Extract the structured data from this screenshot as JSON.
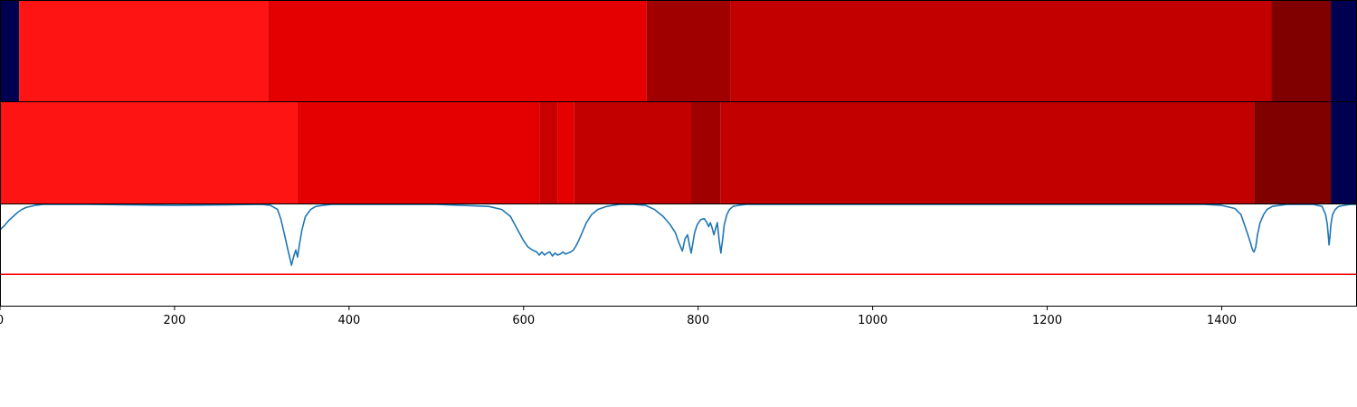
{
  "chart_data": [
    {
      "type": "heatmap",
      "segments": [
        {
          "start": 0,
          "end": 22,
          "color": "#000050"
        },
        {
          "start": 22,
          "end": 307,
          "color": "#ff1414"
        },
        {
          "start": 307,
          "end": 741,
          "color": "#e40000"
        },
        {
          "start": 741,
          "end": 837,
          "color": "#a10000"
        },
        {
          "start": 837,
          "end": 1457,
          "color": "#c20000"
        },
        {
          "start": 1457,
          "end": 1525,
          "color": "#800000"
        },
        {
          "start": 1525,
          "end": 1555,
          "color": "#000050"
        }
      ]
    },
    {
      "type": "heatmap",
      "segments": [
        {
          "start": 0,
          "end": 341,
          "color": "#ff1414"
        },
        {
          "start": 341,
          "end": 618,
          "color": "#e40000"
        },
        {
          "start": 618,
          "end": 639,
          "color": "#c80000"
        },
        {
          "start": 639,
          "end": 658,
          "color": "#e40000"
        },
        {
          "start": 658,
          "end": 792,
          "color": "#c20000"
        },
        {
          "start": 792,
          "end": 826,
          "color": "#a10000"
        },
        {
          "start": 826,
          "end": 1437,
          "color": "#c20000"
        },
        {
          "start": 1437,
          "end": 1525,
          "color": "#800000"
        },
        {
          "start": 1525,
          "end": 1555,
          "color": "#000050"
        }
      ]
    },
    {
      "type": "line",
      "xlim": [
        0,
        1555
      ],
      "ylim": [
        0,
        1
      ],
      "xticks": [
        "0",
        "200",
        "400",
        "600",
        "800",
        "1000",
        "1200",
        "1400"
      ],
      "xtick_values": [
        0,
        200,
        400,
        600,
        800,
        1000,
        1200,
        1400
      ],
      "series": [
        {
          "color": "#1f77b4",
          "x": [
            0,
            5,
            10,
            15,
            20,
            25,
            30,
            40,
            50,
            100,
            200,
            300,
            310,
            318,
            322,
            326,
            330,
            334,
            337,
            339,
            341,
            343,
            346,
            350,
            356,
            362,
            370,
            380,
            400,
            500,
            560,
            575,
            585,
            590,
            595,
            600,
            605,
            610,
            615,
            618,
            621,
            624,
            627,
            630,
            633,
            636,
            639,
            642,
            645,
            648,
            651,
            654,
            657,
            660,
            663,
            667,
            672,
            678,
            685,
            695,
            710,
            725,
            740,
            750,
            760,
            768,
            774,
            778,
            782,
            785,
            788,
            790,
            792,
            794,
            796,
            799,
            803,
            807,
            810,
            812,
            814,
            816,
            818,
            820,
            822,
            824,
            826,
            828,
            830,
            833,
            836,
            840,
            846,
            855,
            870,
            900,
            1000,
            1200,
            1380,
            1400,
            1415,
            1422,
            1426,
            1430,
            1433,
            1435,
            1436,
            1437,
            1439,
            1441,
            1444,
            1448,
            1452,
            1458,
            1466,
            1475,
            1490,
            1505,
            1515,
            1519,
            1521,
            1522,
            1523,
            1524,
            1525,
            1527,
            1530,
            1534,
            1540,
            1548,
            1555
          ],
          "y": [
            0.75,
            0.79,
            0.84,
            0.88,
            0.92,
            0.95,
            0.97,
            0.99,
            1.0,
            1.0,
            0.99,
            1.0,
            0.99,
            0.95,
            0.85,
            0.7,
            0.55,
            0.4,
            0.5,
            0.55,
            0.48,
            0.6,
            0.75,
            0.88,
            0.95,
            0.98,
            0.99,
            1.0,
            1.0,
            1.0,
            0.98,
            0.95,
            0.88,
            0.8,
            0.72,
            0.64,
            0.58,
            0.55,
            0.53,
            0.5,
            0.53,
            0.5,
            0.52,
            0.53,
            0.49,
            0.52,
            0.5,
            0.51,
            0.53,
            0.51,
            0.52,
            0.53,
            0.55,
            0.59,
            0.64,
            0.72,
            0.82,
            0.9,
            0.95,
            0.98,
            1.0,
            1.0,
            0.99,
            0.95,
            0.88,
            0.8,
            0.72,
            0.62,
            0.54,
            0.66,
            0.7,
            0.6,
            0.52,
            0.62,
            0.72,
            0.8,
            0.85,
            0.86,
            0.82,
            0.78,
            0.82,
            0.77,
            0.7,
            0.76,
            0.82,
            0.65,
            0.52,
            0.65,
            0.8,
            0.9,
            0.95,
            0.98,
            0.99,
            1.0,
            1.0,
            1.0,
            1.0,
            1.0,
            1.0,
            0.99,
            0.96,
            0.9,
            0.8,
            0.7,
            0.62,
            0.56,
            0.54,
            0.53,
            0.58,
            0.7,
            0.82,
            0.9,
            0.95,
            0.98,
            0.99,
            1.0,
            1.0,
            1.0,
            0.98,
            0.9,
            0.8,
            0.7,
            0.6,
            0.68,
            0.8,
            0.9,
            0.95,
            0.98,
            0.99,
            1.0,
            1.0
          ]
        },
        {
          "color": "#ff0000",
          "x": [
            0,
            1555
          ],
          "y": [
            0.31,
            0.31
          ]
        }
      ]
    }
  ]
}
